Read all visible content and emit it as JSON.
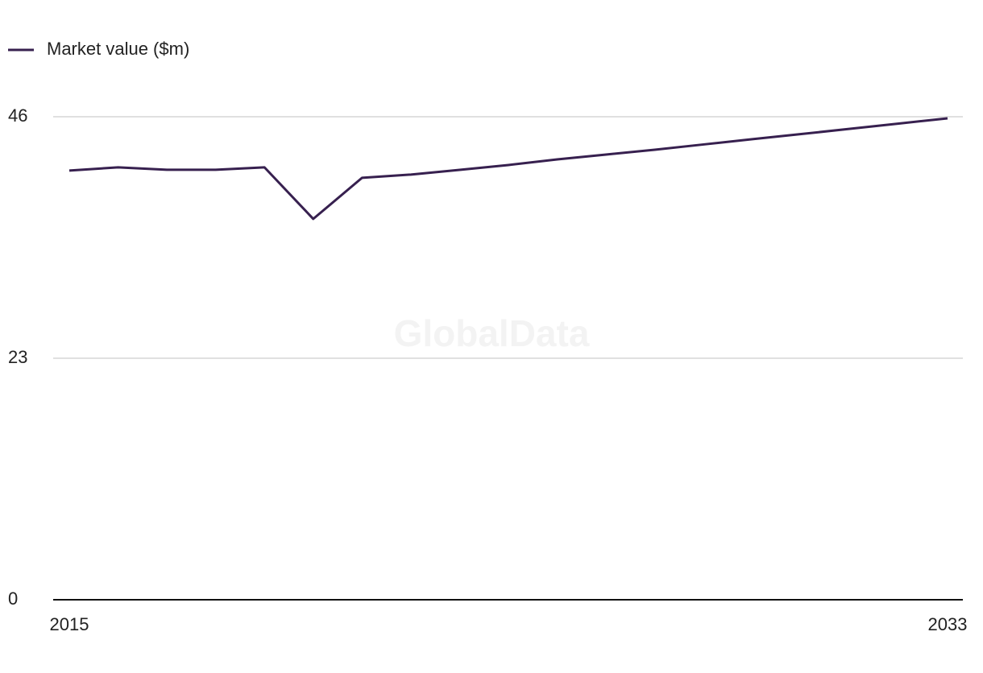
{
  "chart_data": {
    "type": "line",
    "series": [
      {
        "name": "Market value ($m)",
        "color": "#37204f",
        "values": [
          40.87,
          41.18,
          40.95,
          40.95,
          41.18,
          36.27,
          40.18,
          40.49,
          40.94,
          41.4,
          41.94,
          42.4,
          42.86,
          43.36,
          43.86,
          44.35,
          44.85,
          45.35,
          45.85
        ]
      }
    ],
    "x": [
      2015,
      2016,
      2017,
      2018,
      2019,
      2020,
      2021,
      2022,
      2023,
      2024,
      2025,
      2026,
      2027,
      2028,
      2029,
      2030,
      2031,
      2032,
      2033
    ],
    "xlim": [
      2015,
      2033
    ],
    "xticks": [
      2015,
      2033
    ],
    "ylim": [
      0,
      46
    ],
    "yticks": [
      0,
      23,
      46
    ],
    "grid": true,
    "watermark": "GlobalData"
  }
}
